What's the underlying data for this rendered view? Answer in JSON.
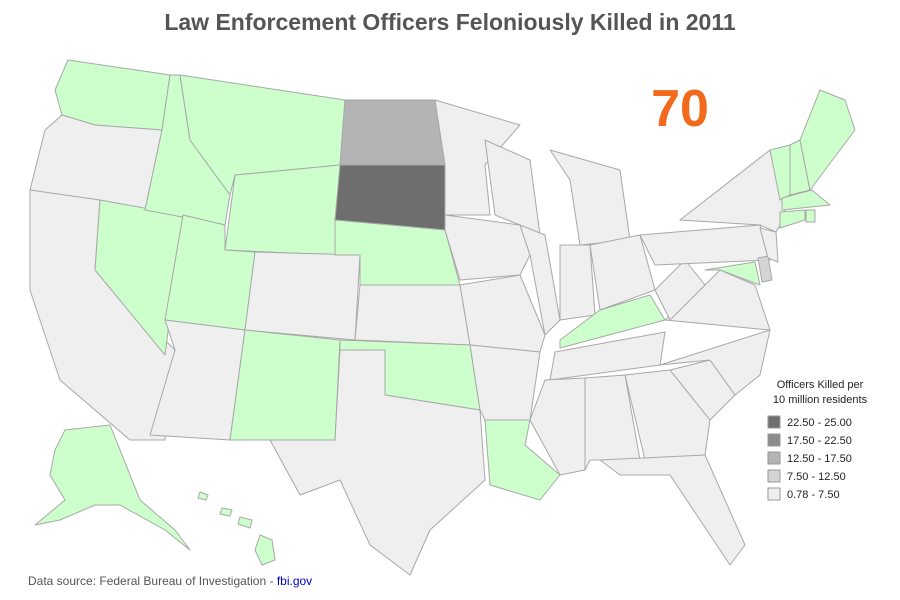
{
  "header": {
    "title": "Law Enforcement Officers Feloniously Killed in 2011",
    "total": 70
  },
  "legend": {
    "title_lines": [
      "Officers Killed per",
      "10 million residents"
    ],
    "entries": [
      {
        "label": "22.50 - 25.00",
        "color": "#6e6e6e"
      },
      {
        "label": "17.50 - 22.50",
        "color": "#8c8c8c"
      },
      {
        "label": "12.50 - 17.50",
        "color": "#b4b4b4"
      },
      {
        "label": "7.50 - 12.50",
        "color": "#d4d4d4"
      },
      {
        "label": "0.78 - 7.50",
        "color": "#efefef"
      }
    ]
  },
  "footer": {
    "source": "Data source: Federal Bureau of Investigation - ",
    "link": "fbi.gov"
  }
}
